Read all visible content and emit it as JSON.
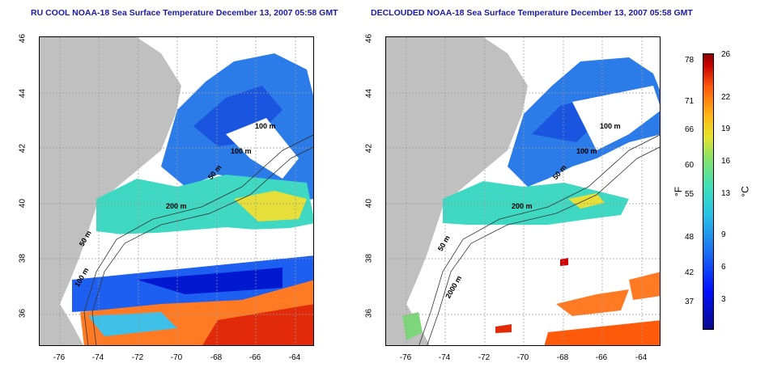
{
  "left_panel": {
    "title": "RU COOL NOAA-18 Sea Surface Temperature December 13, 2007 05:58 GMT",
    "contours": [
      "100 m",
      "100 m",
      "50 m",
      "200 m",
      "50 m",
      "100 m"
    ]
  },
  "right_panel": {
    "title": "DECLOUDED NOAA-18 Sea Surface Temperature December 13, 2007 05:58 GMT",
    "contours": [
      "100 m",
      "100 m",
      "50 m",
      "200 m",
      "50 m",
      "2000 m"
    ]
  },
  "axes": {
    "lat_ticks": [
      "36",
      "38",
      "40",
      "42",
      "44",
      "46"
    ],
    "lon_ticks": [
      "-76",
      "-74",
      "-72",
      "-70",
      "-68",
      "-66",
      "-64"
    ]
  },
  "colorbar": {
    "fahrenheit": [
      "78",
      "71",
      "66",
      "60",
      "55",
      "48",
      "42",
      "37"
    ],
    "celsius": [
      "26",
      "22",
      "19",
      "16",
      "13",
      "9",
      "6",
      "3"
    ],
    "unit_f": "°F",
    "unit_c": "°C"
  },
  "colors": {
    "land": "#c0c0c0",
    "title": "#1a1aa6"
  }
}
